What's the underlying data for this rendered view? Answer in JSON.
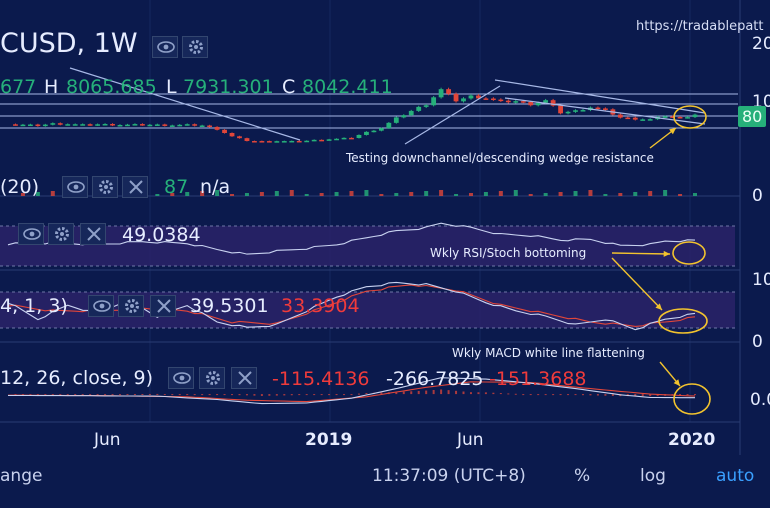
{
  "header": {
    "symbol": "CUSD, 1W",
    "source_watermark": "https://tradablepatt",
    "ohlc": {
      "o_label": "",
      "o_value": "677",
      "h_label": "H",
      "h_value": "8065.685",
      "l_label": "L",
      "l_value": "7931.301",
      "c_label": "C",
      "c_value": "8042.411"
    }
  },
  "price_scale": {
    "top_label": "20",
    "mid_label": "10",
    "price_tag": "80",
    "volume_zero": "0"
  },
  "indicators": {
    "volume": {
      "label": "(20)",
      "value": "87",
      "value2": "n/a"
    },
    "rsi": {
      "value": "49.0384",
      "scale": "10"
    },
    "stoch": {
      "label": "4, 1, 3)",
      "k": "39.5301",
      "d": "33.3904",
      "scale": "0"
    },
    "macd": {
      "label": "12, 26, close, 9)",
      "hist": "-115.4136",
      "macd": "-266.7825",
      "signal": "-151.3688",
      "scale": "0.0"
    }
  },
  "annotations": {
    "wedge": "Testing downchannel/descending wedge resistance",
    "rsi": "Wkly RSI/Stoch bottoming",
    "macd": "Wkly MACD white line flattening"
  },
  "time_axis": [
    "Jun",
    "2019",
    "Jun",
    "2020"
  ],
  "status_bar": {
    "range": "ange",
    "clock": "11:37:09 (UTC+8)",
    "percent": "%",
    "log": "log",
    "auto": "auto"
  },
  "colors": {
    "background": "#0b1a4d",
    "up": "#26b07a",
    "down": "#e0463a",
    "line": "#c8d2f0",
    "annotation": "#f2c32e",
    "band": "#2a2368"
  },
  "chart_data": {
    "type": "candlestick",
    "timeframe": "1W",
    "x_ticks": [
      "Jun",
      "2019",
      "Jun",
      "2020"
    ],
    "price": [
      {
        "week": 0,
        "c": 6400
      },
      {
        "week": 2,
        "c": 6300
      },
      {
        "week": 4,
        "c": 6200
      },
      {
        "week": 6,
        "c": 6500
      },
      {
        "week": 8,
        "c": 6450
      },
      {
        "week": 10,
        "c": 6300
      },
      {
        "week": 12,
        "c": 6400
      },
      {
        "week": 14,
        "c": 6350
      },
      {
        "week": 16,
        "c": 6300
      },
      {
        "week": 18,
        "c": 6350
      },
      {
        "week": 20,
        "c": 6300
      },
      {
        "week": 22,
        "c": 6250
      },
      {
        "week": 24,
        "c": 6300
      },
      {
        "week": 26,
        "c": 6200
      },
      {
        "week": 28,
        "c": 5600
      },
      {
        "week": 30,
        "c": 4400
      },
      {
        "week": 32,
        "c": 3700
      },
      {
        "week": 34,
        "c": 3600
      },
      {
        "week": 36,
        "c": 3650
      },
      {
        "week": 38,
        "c": 3600
      },
      {
        "week": 40,
        "c": 3700
      },
      {
        "week": 42,
        "c": 3900
      },
      {
        "week": 44,
        "c": 4000
      },
      {
        "week": 46,
        "c": 4200
      },
      {
        "week": 48,
        "c": 5100
      },
      {
        "week": 50,
        "c": 5800
      },
      {
        "week": 52,
        "c": 7400
      },
      {
        "week": 54,
        "c": 8600
      },
      {
        "week": 56,
        "c": 9700
      },
      {
        "week": 58,
        "c": 12100
      },
      {
        "week": 60,
        "c": 10300
      },
      {
        "week": 62,
        "c": 11000
      },
      {
        "week": 64,
        "c": 10700
      },
      {
        "week": 66,
        "c": 10100
      },
      {
        "week": 68,
        "c": 10200
      },
      {
        "week": 70,
        "c": 9700
      },
      {
        "week": 72,
        "c": 10300
      },
      {
        "week": 74,
        "c": 8300
      },
      {
        "week": 76,
        "c": 8600
      },
      {
        "week": 78,
        "c": 9200
      },
      {
        "week": 80,
        "c": 8700
      },
      {
        "week": 82,
        "c": 7500
      },
      {
        "week": 84,
        "c": 7300
      },
      {
        "week": 86,
        "c": 7200
      },
      {
        "week": 88,
        "c": 7800
      },
      {
        "week": 90,
        "c": 7400
      },
      {
        "week": 92,
        "c": 8042
      }
    ],
    "rsi": [
      {
        "week": 0,
        "v": 43
      },
      {
        "week": 6,
        "v": 45
      },
      {
        "week": 12,
        "v": 42
      },
      {
        "week": 18,
        "v": 47
      },
      {
        "week": 24,
        "v": 44
      },
      {
        "week": 28,
        "v": 33
      },
      {
        "week": 32,
        "v": 24
      },
      {
        "week": 36,
        "v": 30
      },
      {
        "week": 40,
        "v": 35
      },
      {
        "week": 44,
        "v": 42
      },
      {
        "week": 48,
        "v": 54
      },
      {
        "week": 52,
        "v": 66
      },
      {
        "week": 56,
        "v": 72
      },
      {
        "week": 58,
        "v": 80
      },
      {
        "week": 62,
        "v": 72
      },
      {
        "week": 66,
        "v": 60
      },
      {
        "week": 70,
        "v": 58
      },
      {
        "week": 74,
        "v": 50
      },
      {
        "week": 78,
        "v": 51
      },
      {
        "week": 82,
        "v": 40
      },
      {
        "week": 86,
        "v": 42
      },
      {
        "week": 88,
        "v": 48
      },
      {
        "week": 92,
        "v": 49
      }
    ],
    "stoch_k": [
      {
        "week": 0,
        "v": 60
      },
      {
        "week": 4,
        "v": 30
      },
      {
        "week": 8,
        "v": 55
      },
      {
        "week": 12,
        "v": 40
      },
      {
        "week": 16,
        "v": 65
      },
      {
        "week": 20,
        "v": 35
      },
      {
        "week": 24,
        "v": 55
      },
      {
        "week": 28,
        "v": 25
      },
      {
        "week": 32,
        "v": 15
      },
      {
        "week": 36,
        "v": 20
      },
      {
        "week": 40,
        "v": 45
      },
      {
        "week": 44,
        "v": 70
      },
      {
        "week": 48,
        "v": 88
      },
      {
        "week": 52,
        "v": 95
      },
      {
        "week": 56,
        "v": 92
      },
      {
        "week": 60,
        "v": 80
      },
      {
        "week": 64,
        "v": 60
      },
      {
        "week": 68,
        "v": 45
      },
      {
        "week": 72,
        "v": 35
      },
      {
        "week": 76,
        "v": 20
      },
      {
        "week": 80,
        "v": 30
      },
      {
        "week": 84,
        "v": 12
      },
      {
        "week": 88,
        "v": 30
      },
      {
        "week": 92,
        "v": 39.5
      }
    ],
    "stoch_d": [
      {
        "week": 0,
        "v": 55
      },
      {
        "week": 6,
        "v": 45
      },
      {
        "week": 12,
        "v": 45
      },
      {
        "week": 18,
        "v": 50
      },
      {
        "week": 24,
        "v": 45
      },
      {
        "week": 30,
        "v": 25
      },
      {
        "week": 36,
        "v": 22
      },
      {
        "week": 42,
        "v": 50
      },
      {
        "week": 48,
        "v": 80
      },
      {
        "week": 54,
        "v": 92
      },
      {
        "week": 60,
        "v": 82
      },
      {
        "week": 66,
        "v": 55
      },
      {
        "week": 72,
        "v": 40
      },
      {
        "week": 78,
        "v": 25
      },
      {
        "week": 84,
        "v": 18
      },
      {
        "week": 88,
        "v": 25
      },
      {
        "week": 92,
        "v": 33.4
      }
    ],
    "macd_line": [
      {
        "week": 0,
        "v": -100
      },
      {
        "week": 10,
        "v": -120
      },
      {
        "week": 20,
        "v": -150
      },
      {
        "week": 28,
        "v": -400
      },
      {
        "week": 34,
        "v": -700
      },
      {
        "week": 40,
        "v": -650
      },
      {
        "week": 46,
        "v": -300
      },
      {
        "week": 52,
        "v": 400
      },
      {
        "week": 58,
        "v": 1200
      },
      {
        "week": 64,
        "v": 1100
      },
      {
        "week": 70,
        "v": 800
      },
      {
        "week": 76,
        "v": 400
      },
      {
        "week": 82,
        "v": -50
      },
      {
        "week": 86,
        "v": -250
      },
      {
        "week": 92,
        "v": -266.8
      }
    ],
    "macd_signal": [
      {
        "week": 0,
        "v": -80
      },
      {
        "week": 12,
        "v": -110
      },
      {
        "week": 24,
        "v": -200
      },
      {
        "week": 32,
        "v": -450
      },
      {
        "week": 40,
        "v": -550
      },
      {
        "week": 48,
        "v": -200
      },
      {
        "week": 56,
        "v": 500
      },
      {
        "week": 62,
        "v": 900
      },
      {
        "week": 70,
        "v": 850
      },
      {
        "week": 78,
        "v": 400
      },
      {
        "week": 86,
        "v": 0
      },
      {
        "week": 92,
        "v": -151.4
      }
    ],
    "ylim_price": [
      3000,
      14500
    ]
  }
}
